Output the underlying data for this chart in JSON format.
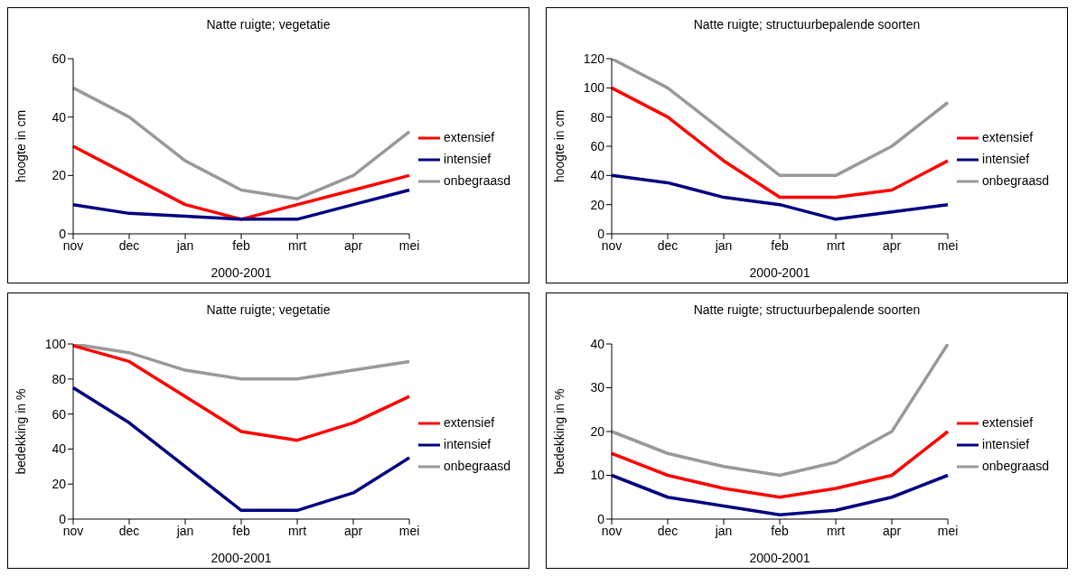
{
  "chart_data": [
    {
      "type": "line",
      "title": "Natte ruigte; vegetatie",
      "xlabel": "2000-2001",
      "ylabel": "hoogte in cm",
      "categories": [
        "nov",
        "dec",
        "jan",
        "feb",
        "mrt",
        "apr",
        "mei"
      ],
      "ylim": [
        0,
        60
      ],
      "yticks": [
        0,
        20,
        40,
        60
      ],
      "grid": false,
      "legend": "right",
      "marker": "none",
      "line_style": "solid",
      "series": [
        {
          "name": "onbegraasd",
          "color": "#999999",
          "values": [
            50,
            40,
            25,
            15,
            12,
            20,
            35
          ]
        },
        {
          "name": "extensief",
          "color": "#ff0000",
          "values": [
            30,
            20,
            10,
            5,
            10,
            15,
            20
          ]
        },
        {
          "name": "intensief",
          "color": "#000080",
          "values": [
            10,
            7,
            6,
            5,
            5,
            10,
            15
          ]
        }
      ]
    },
    {
      "type": "line",
      "title": "Natte ruigte; structuurbepalende soorten",
      "xlabel": "2000-2001",
      "ylabel": "hoogte in cm",
      "categories": [
        "nov",
        "dec",
        "jan",
        "feb",
        "mrt",
        "apr",
        "mei"
      ],
      "ylim": [
        0,
        120
      ],
      "yticks": [
        0,
        20,
        40,
        60,
        80,
        100,
        120
      ],
      "grid": false,
      "legend": "right",
      "marker": "none",
      "line_style": "solid",
      "series": [
        {
          "name": "onbegraasd",
          "color": "#999999",
          "values": [
            120,
            100,
            70,
            40,
            40,
            60,
            90
          ]
        },
        {
          "name": "extensief",
          "color": "#ff0000",
          "values": [
            100,
            80,
            50,
            25,
            25,
            30,
            50
          ]
        },
        {
          "name": "intensief",
          "color": "#000080",
          "values": [
            40,
            35,
            25,
            20,
            10,
            15,
            20
          ]
        }
      ]
    },
    {
      "type": "line",
      "title": "Natte ruigte; vegetatie",
      "xlabel": "2000-2001",
      "ylabel": "bedekking in %",
      "categories": [
        "nov",
        "dec",
        "jan",
        "feb",
        "mrt",
        "apr",
        "mei"
      ],
      "ylim": [
        0,
        100
      ],
      "yticks": [
        0,
        20,
        40,
        60,
        80,
        100
      ],
      "grid": false,
      "legend": "right",
      "marker": "none",
      "line_style": "solid",
      "series": [
        {
          "name": "onbegraasd",
          "color": "#999999",
          "values": [
            100,
            95,
            85,
            80,
            80,
            85,
            90
          ]
        },
        {
          "name": "extensief",
          "color": "#ff0000",
          "values": [
            99,
            90,
            70,
            50,
            45,
            55,
            70
          ]
        },
        {
          "name": "intensief",
          "color": "#000080",
          "values": [
            75,
            55,
            30,
            5,
            5,
            15,
            35
          ]
        }
      ]
    },
    {
      "type": "line",
      "title": "Natte ruigte; structuurbepalende soorten",
      "xlabel": "2000-2001",
      "ylabel": "bedekking in %",
      "categories": [
        "nov",
        "dec",
        "jan",
        "feb",
        "mrt",
        "apr",
        "mei"
      ],
      "ylim": [
        0,
        40
      ],
      "yticks": [
        0,
        10,
        20,
        30,
        40
      ],
      "grid": false,
      "legend": "right",
      "marker": "none",
      "line_style": "solid",
      "series": [
        {
          "name": "onbegraasd",
          "color": "#999999",
          "values": [
            20,
            15,
            12,
            10,
            13,
            20,
            40
          ]
        },
        {
          "name": "extensief",
          "color": "#ff0000",
          "values": [
            15,
            10,
            7,
            5,
            7,
            10,
            20
          ]
        },
        {
          "name": "intensief",
          "color": "#000080",
          "values": [
            10,
            5,
            3,
            1,
            2,
            5,
            10
          ]
        }
      ]
    }
  ]
}
